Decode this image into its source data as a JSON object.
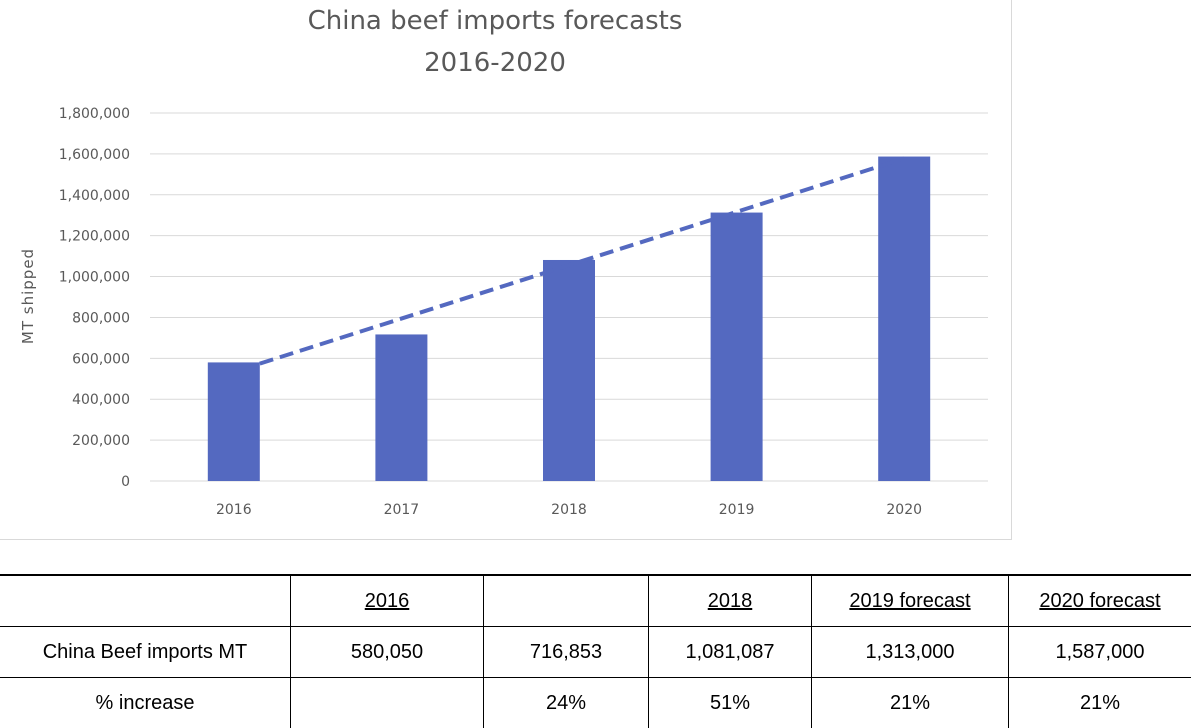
{
  "chart_data": {
    "type": "bar",
    "title": [
      "China beef imports forecasts",
      "2016-2020"
    ],
    "ylabel": "MT shipped",
    "xlabel": "",
    "categories": [
      "2016",
      "2017",
      "2018",
      "2019",
      "2020"
    ],
    "values": [
      580050,
      716853,
      1081087,
      1313000,
      1587000
    ],
    "ylim": [
      0,
      1800000
    ],
    "yticks": [
      "0",
      "200,000",
      "400,000",
      "600,000",
      "800,000",
      "1,000,000",
      "1,200,000",
      "1,400,000",
      "1,600,000",
      "1,800,000"
    ],
    "trendline": {
      "style": "dashed",
      "type": "linear"
    },
    "grid": true,
    "legend": "none",
    "colors": {
      "bar": "#5469c0",
      "trendline": "#5469c0",
      "grid": "#d9d9d9",
      "text": "#595959"
    }
  },
  "table": {
    "headers": [
      "",
      "2016",
      "",
      "2018",
      "2019 forecast",
      "2020 forecast"
    ],
    "rows": [
      [
        "China Beef imports MT",
        "580,050",
        "716,853",
        "1,081,087",
        "1,313,000",
        "1,587,000"
      ],
      [
        "% increase",
        "",
        "24%",
        "51%",
        "21%",
        "21%"
      ]
    ]
  }
}
